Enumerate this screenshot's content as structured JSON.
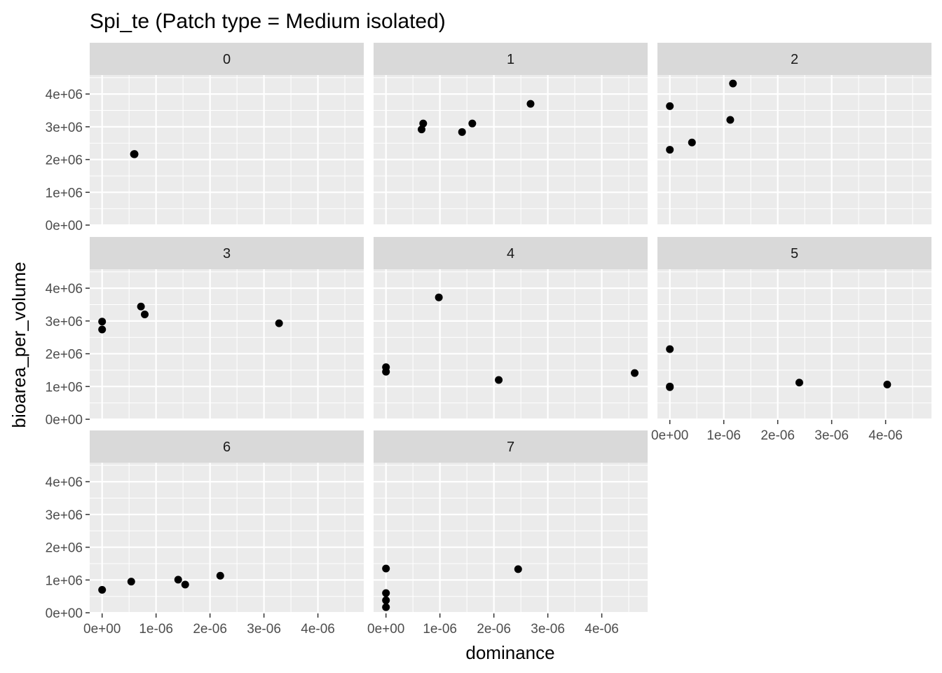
{
  "chart_data": {
    "type": "scatter",
    "title": "Spi_te (Patch type = Medium isolated)",
    "xlabel": "dominance",
    "ylabel": "bioarea_per_volume",
    "x_ticks": [
      0,
      1e-06,
      2e-06,
      3e-06,
      4e-06
    ],
    "x_tick_labels": [
      "0e+00",
      "1e-06",
      "2e-06",
      "3e-06",
      "4e-06"
    ],
    "y_ticks": [
      0,
      1000000,
      2000000,
      3000000,
      4000000
    ],
    "y_tick_labels": [
      "0e+00",
      "1e+06",
      "2e+06",
      "3e+06",
      "4e+06"
    ],
    "xlim": [
      -2.3e-07,
      4.85e-06
    ],
    "ylim": [
      -20000,
      4580000
    ],
    "grid": true,
    "panels": [
      {
        "label": "0",
        "points": [
          [
            6e-07,
            2160000
          ],
          [
            6e-07,
            2170000
          ],
          [
            5.9e-07,
            2165000
          ]
        ]
      },
      {
        "label": "1",
        "points": [
          [
            6.6e-07,
            2920000
          ],
          [
            6.9e-07,
            3100000
          ],
          [
            1.41e-06,
            2840000
          ],
          [
            1.6e-06,
            3100000
          ],
          [
            2.68e-06,
            3700000
          ]
        ]
      },
      {
        "label": "2",
        "points": [
          [
            0.0,
            3630000
          ],
          [
            0.0,
            2300000
          ],
          [
            4.1e-07,
            2520000
          ],
          [
            1.12e-06,
            3210000
          ],
          [
            1.17e-06,
            4320000
          ]
        ]
      },
      {
        "label": "3",
        "points": [
          [
            0.0,
            2980000
          ],
          [
            0.0,
            2740000
          ],
          [
            7.2e-07,
            3440000
          ],
          [
            7.9e-07,
            3200000
          ],
          [
            3.28e-06,
            2930000
          ]
        ]
      },
      {
        "label": "4",
        "points": [
          [
            0.0,
            1590000
          ],
          [
            0.0,
            1450000
          ],
          [
            9.8e-07,
            3720000
          ],
          [
            2.09e-06,
            1200000
          ],
          [
            4.61e-06,
            1410000
          ]
        ]
      },
      {
        "label": "5",
        "points": [
          [
            0.0,
            2140000
          ],
          [
            0.0,
            1000000
          ],
          [
            0.0,
            980000
          ],
          [
            2.4e-06,
            1120000
          ],
          [
            4.03e-06,
            1060000
          ]
        ]
      },
      {
        "label": "6",
        "points": [
          [
            0.0,
            700000
          ],
          [
            5.4e-07,
            950000
          ],
          [
            1.41e-06,
            1010000
          ],
          [
            1.54e-06,
            860000
          ],
          [
            2.19e-06,
            1130000
          ]
        ]
      },
      {
        "label": "7",
        "points": [
          [
            0.0,
            1350000
          ],
          [
            0.0,
            600000
          ],
          [
            0.0,
            380000
          ],
          [
            0.0,
            170000
          ],
          [
            2.45e-06,
            1330000
          ]
        ]
      }
    ]
  }
}
